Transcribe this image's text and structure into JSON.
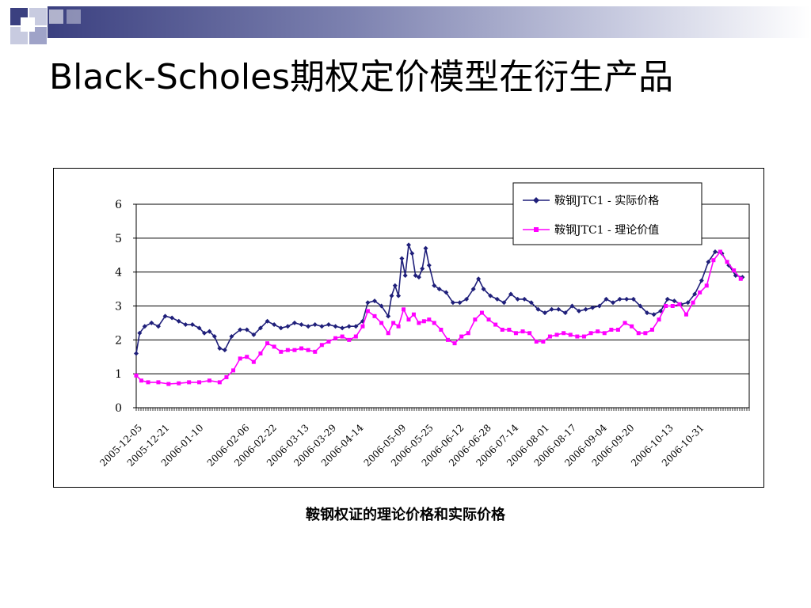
{
  "slide": {
    "title": "Black-Scholes期权定价模型在衍生产品",
    "caption": "鞍钢权证的理论价格和实际价格"
  },
  "colors": {
    "deco_dark": "#3b4080",
    "deco_light": "#9fa3c8",
    "actual": "#1f1f7a",
    "theoretical": "#ff00ff"
  },
  "chart_data": {
    "type": "line",
    "yticks": [
      0,
      1,
      2,
      3,
      4,
      5,
      6
    ],
    "ylim": [
      0,
      6
    ],
    "xlim": [
      "2005-12-05",
      "2006-11-30"
    ],
    "xtick_labels": [
      "2005-12-05",
      "2005-12-21",
      "2006-01-10",
      "2006-02-06",
      "2006-02-22",
      "2006-03-13",
      "2006-03-29",
      "2006-04-14",
      "2006-05-09",
      "2006-05-25",
      "2006-06-12",
      "2006-06-28",
      "2006-07-14",
      "2006-08-01",
      "2006-08-17",
      "2006-09-04",
      "2006-09-20",
      "2006-10-13",
      "2006-10-31"
    ],
    "grid": true,
    "legend": "top-right",
    "series": [
      {
        "name": "鞍钢JTC1 - 实际价格",
        "color": "#1f1f7a",
        "marker": "diamond",
        "points": [
          [
            "2005-12-05",
            1.6
          ],
          [
            "2005-12-07",
            2.2
          ],
          [
            "2005-12-10",
            2.4
          ],
          [
            "2005-12-14",
            2.5
          ],
          [
            "2005-12-18",
            2.4
          ],
          [
            "2005-12-22",
            2.7
          ],
          [
            "2005-12-26",
            2.65
          ],
          [
            "2005-12-30",
            2.55
          ],
          [
            "2006-01-03",
            2.45
          ],
          [
            "2006-01-07",
            2.45
          ],
          [
            "2006-01-11",
            2.35
          ],
          [
            "2006-01-14",
            2.2
          ],
          [
            "2006-01-17",
            2.25
          ],
          [
            "2006-01-20",
            2.1
          ],
          [
            "2006-01-23",
            1.75
          ],
          [
            "2006-01-26",
            1.7
          ],
          [
            "2006-01-30",
            2.1
          ],
          [
            "2006-02-04",
            2.3
          ],
          [
            "2006-02-08",
            2.3
          ],
          [
            "2006-02-12",
            2.15
          ],
          [
            "2006-02-16",
            2.35
          ],
          [
            "2006-02-20",
            2.55
          ],
          [
            "2006-02-24",
            2.45
          ],
          [
            "2006-02-28",
            2.35
          ],
          [
            "2006-03-04",
            2.4
          ],
          [
            "2006-03-08",
            2.5
          ],
          [
            "2006-03-12",
            2.45
          ],
          [
            "2006-03-16",
            2.4
          ],
          [
            "2006-03-20",
            2.45
          ],
          [
            "2006-03-24",
            2.4
          ],
          [
            "2006-03-28",
            2.45
          ],
          [
            "2006-04-01",
            2.4
          ],
          [
            "2006-04-05",
            2.35
          ],
          [
            "2006-04-09",
            2.4
          ],
          [
            "2006-04-13",
            2.4
          ],
          [
            "2006-04-17",
            2.55
          ],
          [
            "2006-04-20",
            3.1
          ],
          [
            "2006-04-24",
            3.15
          ],
          [
            "2006-04-28",
            3.0
          ],
          [
            "2006-05-02",
            2.7
          ],
          [
            "2006-05-04",
            3.3
          ],
          [
            "2006-05-06",
            3.6
          ],
          [
            "2006-05-08",
            3.3
          ],
          [
            "2006-05-10",
            4.4
          ],
          [
            "2006-05-12",
            3.9
          ],
          [
            "2006-05-14",
            4.8
          ],
          [
            "2006-05-16",
            4.55
          ],
          [
            "2006-05-18",
            3.9
          ],
          [
            "2006-05-20",
            3.85
          ],
          [
            "2006-05-22",
            4.1
          ],
          [
            "2006-05-24",
            4.7
          ],
          [
            "2006-05-26",
            4.2
          ],
          [
            "2006-05-29",
            3.6
          ],
          [
            "2006-06-01",
            3.5
          ],
          [
            "2006-06-05",
            3.4
          ],
          [
            "2006-06-09",
            3.1
          ],
          [
            "2006-06-13",
            3.1
          ],
          [
            "2006-06-17",
            3.2
          ],
          [
            "2006-06-21",
            3.5
          ],
          [
            "2006-06-24",
            3.8
          ],
          [
            "2006-06-27",
            3.5
          ],
          [
            "2006-07-01",
            3.3
          ],
          [
            "2006-07-05",
            3.2
          ],
          [
            "2006-07-09",
            3.1
          ],
          [
            "2006-07-13",
            3.35
          ],
          [
            "2006-07-17",
            3.2
          ],
          [
            "2006-07-21",
            3.2
          ],
          [
            "2006-07-25",
            3.1
          ],
          [
            "2006-07-29",
            2.9
          ],
          [
            "2006-08-02",
            2.8
          ],
          [
            "2006-08-06",
            2.9
          ],
          [
            "2006-08-10",
            2.9
          ],
          [
            "2006-08-14",
            2.8
          ],
          [
            "2006-08-18",
            3.0
          ],
          [
            "2006-08-22",
            2.85
          ],
          [
            "2006-08-26",
            2.9
          ],
          [
            "2006-08-30",
            2.95
          ],
          [
            "2006-09-03",
            3.0
          ],
          [
            "2006-09-07",
            3.2
          ],
          [
            "2006-09-11",
            3.1
          ],
          [
            "2006-09-15",
            3.2
          ],
          [
            "2006-09-19",
            3.2
          ],
          [
            "2006-09-23",
            3.2
          ],
          [
            "2006-09-27",
            3.0
          ],
          [
            "2006-10-01",
            2.8
          ],
          [
            "2006-10-05",
            2.75
          ],
          [
            "2006-10-09",
            2.85
          ],
          [
            "2006-10-13",
            3.2
          ],
          [
            "2006-10-17",
            3.15
          ],
          [
            "2006-10-21",
            3.05
          ],
          [
            "2006-10-25",
            3.1
          ],
          [
            "2006-10-29",
            3.35
          ],
          [
            "2006-11-02",
            3.75
          ],
          [
            "2006-11-06",
            4.3
          ],
          [
            "2006-11-10",
            4.6
          ],
          [
            "2006-11-14",
            4.55
          ],
          [
            "2006-11-18",
            4.2
          ],
          [
            "2006-11-22",
            3.9
          ],
          [
            "2006-11-26",
            3.85
          ]
        ]
      },
      {
        "name": "鞍钢JTC1 - 理论价值",
        "color": "#ff00ff",
        "marker": "square",
        "points": [
          [
            "2005-12-05",
            0.95
          ],
          [
            "2005-12-08",
            0.8
          ],
          [
            "2005-12-12",
            0.75
          ],
          [
            "2005-12-18",
            0.75
          ],
          [
            "2005-12-24",
            0.7
          ],
          [
            "2005-12-30",
            0.72
          ],
          [
            "2006-01-05",
            0.75
          ],
          [
            "2006-01-11",
            0.75
          ],
          [
            "2006-01-17",
            0.8
          ],
          [
            "2006-01-23",
            0.75
          ],
          [
            "2006-01-27",
            0.9
          ],
          [
            "2006-01-31",
            1.1
          ],
          [
            "2006-02-04",
            1.45
          ],
          [
            "2006-02-08",
            1.5
          ],
          [
            "2006-02-12",
            1.35
          ],
          [
            "2006-02-16",
            1.6
          ],
          [
            "2006-02-20",
            1.9
          ],
          [
            "2006-02-24",
            1.8
          ],
          [
            "2006-02-28",
            1.65
          ],
          [
            "2006-03-04",
            1.7
          ],
          [
            "2006-03-08",
            1.7
          ],
          [
            "2006-03-12",
            1.75
          ],
          [
            "2006-03-16",
            1.7
          ],
          [
            "2006-03-20",
            1.65
          ],
          [
            "2006-03-24",
            1.85
          ],
          [
            "2006-03-28",
            1.95
          ],
          [
            "2006-04-01",
            2.05
          ],
          [
            "2006-04-05",
            2.1
          ],
          [
            "2006-04-09",
            2.0
          ],
          [
            "2006-04-13",
            2.1
          ],
          [
            "2006-04-17",
            2.4
          ],
          [
            "2006-04-20",
            2.85
          ],
          [
            "2006-04-24",
            2.7
          ],
          [
            "2006-04-28",
            2.5
          ],
          [
            "2006-05-02",
            2.2
          ],
          [
            "2006-05-05",
            2.5
          ],
          [
            "2006-05-08",
            2.4
          ],
          [
            "2006-05-11",
            2.9
          ],
          [
            "2006-05-14",
            2.6
          ],
          [
            "2006-05-17",
            2.75
          ],
          [
            "2006-05-20",
            2.5
          ],
          [
            "2006-05-23",
            2.55
          ],
          [
            "2006-05-26",
            2.6
          ],
          [
            "2006-05-29",
            2.5
          ],
          [
            "2006-06-02",
            2.3
          ],
          [
            "2006-06-06",
            2.0
          ],
          [
            "2006-06-10",
            1.9
          ],
          [
            "2006-06-14",
            2.1
          ],
          [
            "2006-06-18",
            2.2
          ],
          [
            "2006-06-22",
            2.6
          ],
          [
            "2006-06-26",
            2.8
          ],
          [
            "2006-06-30",
            2.6
          ],
          [
            "2006-07-04",
            2.45
          ],
          [
            "2006-07-08",
            2.3
          ],
          [
            "2006-07-12",
            2.3
          ],
          [
            "2006-07-16",
            2.2
          ],
          [
            "2006-07-20",
            2.25
          ],
          [
            "2006-07-24",
            2.2
          ],
          [
            "2006-07-28",
            1.95
          ],
          [
            "2006-08-01",
            1.95
          ],
          [
            "2006-08-05",
            2.1
          ],
          [
            "2006-08-09",
            2.15
          ],
          [
            "2006-08-13",
            2.2
          ],
          [
            "2006-08-17",
            2.15
          ],
          [
            "2006-08-21",
            2.1
          ],
          [
            "2006-08-25",
            2.1
          ],
          [
            "2006-08-29",
            2.2
          ],
          [
            "2006-09-02",
            2.25
          ],
          [
            "2006-09-06",
            2.2
          ],
          [
            "2006-09-10",
            2.3
          ],
          [
            "2006-09-14",
            2.3
          ],
          [
            "2006-09-18",
            2.5
          ],
          [
            "2006-09-22",
            2.4
          ],
          [
            "2006-09-26",
            2.2
          ],
          [
            "2006-09-30",
            2.2
          ],
          [
            "2006-10-04",
            2.3
          ],
          [
            "2006-10-08",
            2.6
          ],
          [
            "2006-10-12",
            3.0
          ],
          [
            "2006-10-16",
            3.0
          ],
          [
            "2006-10-20",
            3.05
          ],
          [
            "2006-10-24",
            2.75
          ],
          [
            "2006-10-28",
            3.1
          ],
          [
            "2006-11-01",
            3.4
          ],
          [
            "2006-11-05",
            3.6
          ],
          [
            "2006-11-09",
            4.35
          ],
          [
            "2006-11-13",
            4.6
          ],
          [
            "2006-11-17",
            4.3
          ],
          [
            "2006-11-21",
            4.05
          ],
          [
            "2006-11-25",
            3.8
          ]
        ]
      }
    ]
  }
}
